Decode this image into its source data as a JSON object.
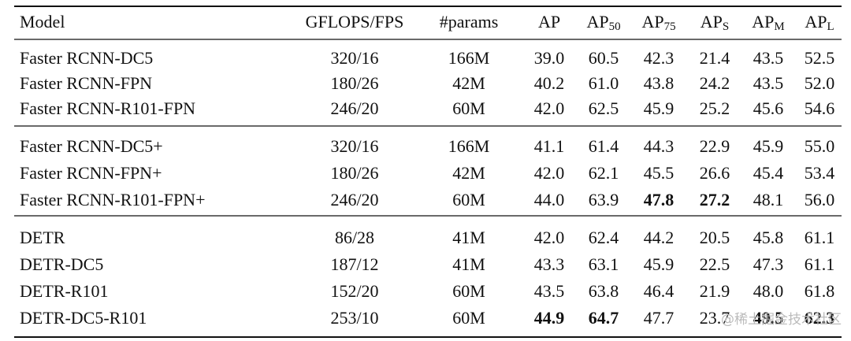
{
  "table": {
    "header": [
      {
        "text": "Model"
      },
      {
        "text": "GFLOPS/FPS"
      },
      {
        "text": "#params"
      },
      {
        "text": "AP"
      },
      {
        "text": "AP",
        "sub": "50"
      },
      {
        "text": "AP",
        "sub": "75"
      },
      {
        "text": "AP",
        "sub": "S"
      },
      {
        "text": "AP",
        "sub": "M"
      },
      {
        "text": "AP",
        "sub": "L"
      }
    ],
    "groups": [
      [
        {
          "cells": [
            "Faster RCNN-DC5",
            "320/16",
            "166M",
            "39.0",
            "60.5",
            "42.3",
            "21.4",
            "43.5",
            "52.5"
          ],
          "bold": []
        },
        {
          "cells": [
            "Faster RCNN-FPN",
            "180/26",
            "42M",
            "40.2",
            "61.0",
            "43.8",
            "24.2",
            "43.5",
            "52.0"
          ],
          "bold": []
        },
        {
          "cells": [
            "Faster RCNN-R101-FPN",
            "246/20",
            "60M",
            "42.0",
            "62.5",
            "45.9",
            "25.2",
            "45.6",
            "54.6"
          ],
          "bold": []
        }
      ],
      [
        {
          "cells": [
            "Faster RCNN-DC5+",
            "320/16",
            "166M",
            "41.1",
            "61.4",
            "44.3",
            "22.9",
            "45.9",
            "55.0"
          ],
          "bold": []
        },
        {
          "cells": [
            "Faster RCNN-FPN+",
            "180/26",
            "42M",
            "42.0",
            "62.1",
            "45.5",
            "26.6",
            "45.4",
            "53.4"
          ],
          "bold": []
        },
        {
          "cells": [
            "Faster RCNN-R101-FPN+",
            "246/20",
            "60M",
            "44.0",
            "63.9",
            "47.8",
            "27.2",
            "48.1",
            "56.0"
          ],
          "bold": [
            5,
            6
          ]
        }
      ],
      [
        {
          "cells": [
            "DETR",
            "86/28",
            "41M",
            "42.0",
            "62.4",
            "44.2",
            "20.5",
            "45.8",
            "61.1"
          ],
          "bold": []
        },
        {
          "cells": [
            "DETR-DC5",
            "187/12",
            "41M",
            "43.3",
            "63.1",
            "45.9",
            "22.5",
            "47.3",
            "61.1"
          ],
          "bold": []
        },
        {
          "cells": [
            "DETR-R101",
            "152/20",
            "60M",
            "43.5",
            "63.8",
            "46.4",
            "21.9",
            "48.0",
            "61.8"
          ],
          "bold": []
        },
        {
          "cells": [
            "DETR-DC5-R101",
            "253/10",
            "60M",
            "44.9",
            "64.7",
            "47.7",
            "23.7",
            "49.5",
            "62.3"
          ],
          "bold": [
            3,
            4,
            7,
            8
          ]
        }
      ]
    ]
  },
  "watermark": "@稀土掘金技术社区"
}
